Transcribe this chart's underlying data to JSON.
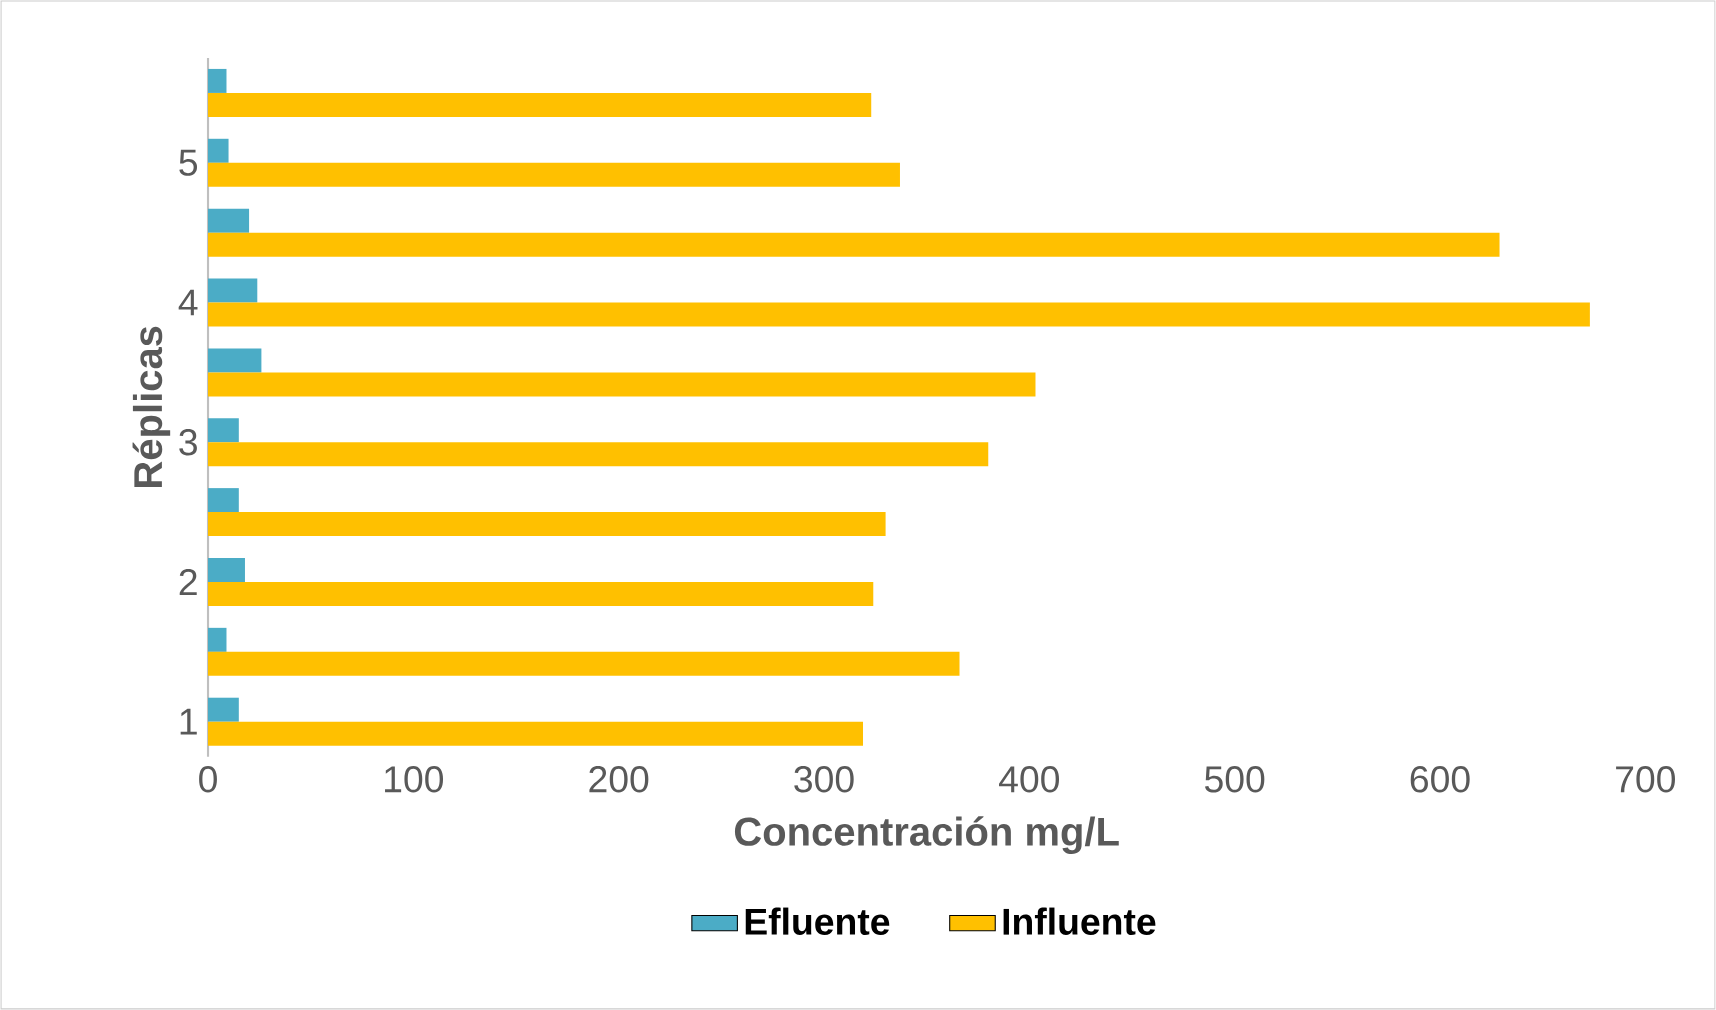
{
  "chart_data": {
    "type": "bar",
    "orientation": "horizontal",
    "xlabel": "Concentración mg/L",
    "ylabel": "Réplicas",
    "categories": [
      null,
      "5",
      null,
      "4",
      null,
      "3",
      null,
      "2",
      null,
      "1"
    ],
    "series": [
      {
        "name": "Efluente",
        "color": "#4bacc6",
        "values": [
          9,
          10,
          20,
          24,
          26,
          15,
          15,
          18,
          9,
          15
        ]
      },
      {
        "name": "Influente",
        "color": "#ffc000",
        "values": [
          323,
          337,
          629,
          673,
          403,
          380,
          330,
          324,
          366,
          319
        ]
      }
    ],
    "xlim": [
      0,
      700
    ],
    "xticks": [
      0,
      100,
      200,
      300,
      400,
      500,
      600,
      700
    ],
    "grid": false,
    "legend": "bottom"
  }
}
